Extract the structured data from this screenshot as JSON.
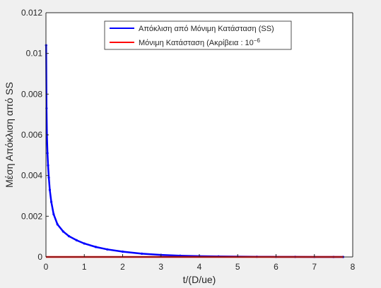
{
  "chart_data": {
    "type": "line",
    "title": "",
    "xlabel": "t/(D/ue)",
    "ylabel": "Μέση Απόκλιση από SS",
    "xlim": [
      0,
      8
    ],
    "ylim": [
      0,
      0.012
    ],
    "x_ticks": [
      "0",
      "1",
      "2",
      "3",
      "4",
      "5",
      "6",
      "7",
      "8"
    ],
    "y_ticks": [
      "0",
      "0.002",
      "0.004",
      "0.006",
      "0.008",
      "0.01",
      "0.012"
    ],
    "legend": {
      "placement": "top-center",
      "entries": [
        "Απόκλιση από Μόνιμη Κατάσταση (SS)",
        "Μόνιμη Κατάσταση (Ακρίβεια : 10^6)"
      ]
    },
    "series": [
      {
        "name": "Απόκλιση από Μόνιμη Κατάσταση (SS)",
        "color": "#0000ff",
        "marker": "dot",
        "x": [
          0.005,
          0.015,
          0.025,
          0.04,
          0.055,
          0.075,
          0.1,
          0.14,
          0.2,
          0.3,
          0.45,
          0.6,
          0.8,
          1.0,
          1.3,
          1.6,
          2.0,
          2.5,
          3.0,
          3.5,
          4.0,
          4.5,
          5.0,
          5.5,
          6.0,
          6.5,
          7.0,
          7.5,
          7.75
        ],
        "y": [
          0.0104,
          0.0073,
          0.006,
          0.0051,
          0.0045,
          0.0039,
          0.0033,
          0.0027,
          0.0021,
          0.0016,
          0.00125,
          0.00102,
          0.00082,
          0.00066,
          0.00049,
          0.00037,
          0.00026,
          0.00016,
          0.0001,
          6e-05,
          4e-05,
          2.5e-05,
          1.6e-05,
          1e-05,
          6e-06,
          4e-06,
          2e-06,
          1e-06,
          1e-06
        ]
      },
      {
        "name": "Μόνιμη Κατάσταση (Ακρίβεια : 10^6)",
        "color": "#ff0000",
        "marker": "none",
        "x": [
          0,
          7.75
        ],
        "y": [
          1e-06,
          1e-06
        ]
      }
    ]
  }
}
